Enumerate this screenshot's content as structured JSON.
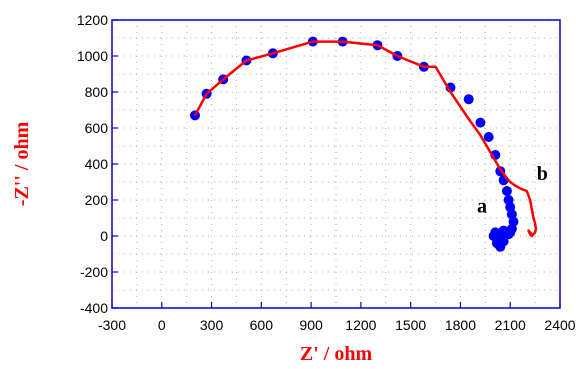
{
  "chart_data": {
    "type": "scatter",
    "title": "",
    "xlabel": "Z' / ohm",
    "ylabel": "-Z'' / ohm",
    "xlim": [
      -300,
      2400
    ],
    "ylim": [
      -400,
      1200
    ],
    "xticks": [
      -300,
      0,
      300,
      600,
      900,
      1200,
      1500,
      1800,
      2100,
      2400
    ],
    "yticks": [
      -400,
      -200,
      0,
      200,
      400,
      600,
      800,
      1000,
      1200
    ],
    "grid": true,
    "legend": "none",
    "series": [
      {
        "name": "a",
        "color": "#0000ff",
        "marker": "circle",
        "line": false,
        "x": [
          200,
          270,
          370,
          510,
          670,
          910,
          1090,
          1300,
          1420,
          1580,
          1740,
          1850,
          1920,
          1970,
          2010,
          2040,
          2060,
          2080,
          2090,
          2100,
          2110,
          2120,
          2110,
          2100,
          2090,
          2070,
          2050,
          2030,
          2010,
          2000,
          2020,
          2040,
          2060,
          2070,
          2060
        ],
        "y": [
          670,
          790,
          870,
          975,
          1015,
          1080,
          1080,
          1060,
          1000,
          940,
          825,
          760,
          630,
          550,
          450,
          360,
          310,
          250,
          200,
          160,
          120,
          80,
          40,
          20,
          10,
          5,
          0,
          5,
          20,
          0,
          -40,
          -60,
          -30,
          10,
          30
        ]
      },
      {
        "name": "b",
        "color": "#ff0000",
        "marker": "none",
        "line": true,
        "x": [
          200,
          270,
          370,
          510,
          670,
          910,
          1090,
          1300,
          1420,
          1580,
          1650,
          1740,
          1850,
          1920,
          1990,
          2040,
          2080,
          2100,
          2130,
          2170,
          2200,
          2220,
          2230,
          2240,
          2250,
          2255,
          2250,
          2240,
          2230,
          2220,
          2210,
          2220,
          2230
        ],
        "y": [
          670,
          790,
          870,
          975,
          1015,
          1080,
          1080,
          1060,
          1000,
          940,
          940,
          800,
          650,
          560,
          450,
          370,
          320,
          300,
          280,
          260,
          250,
          200,
          150,
          100,
          70,
          40,
          20,
          10,
          0,
          10,
          30,
          20,
          10
        ]
      }
    ],
    "annotations": [
      {
        "text": "a",
        "x": 1900,
        "y": 130
      },
      {
        "text": "b",
        "x": 2260,
        "y": 310
      }
    ]
  }
}
